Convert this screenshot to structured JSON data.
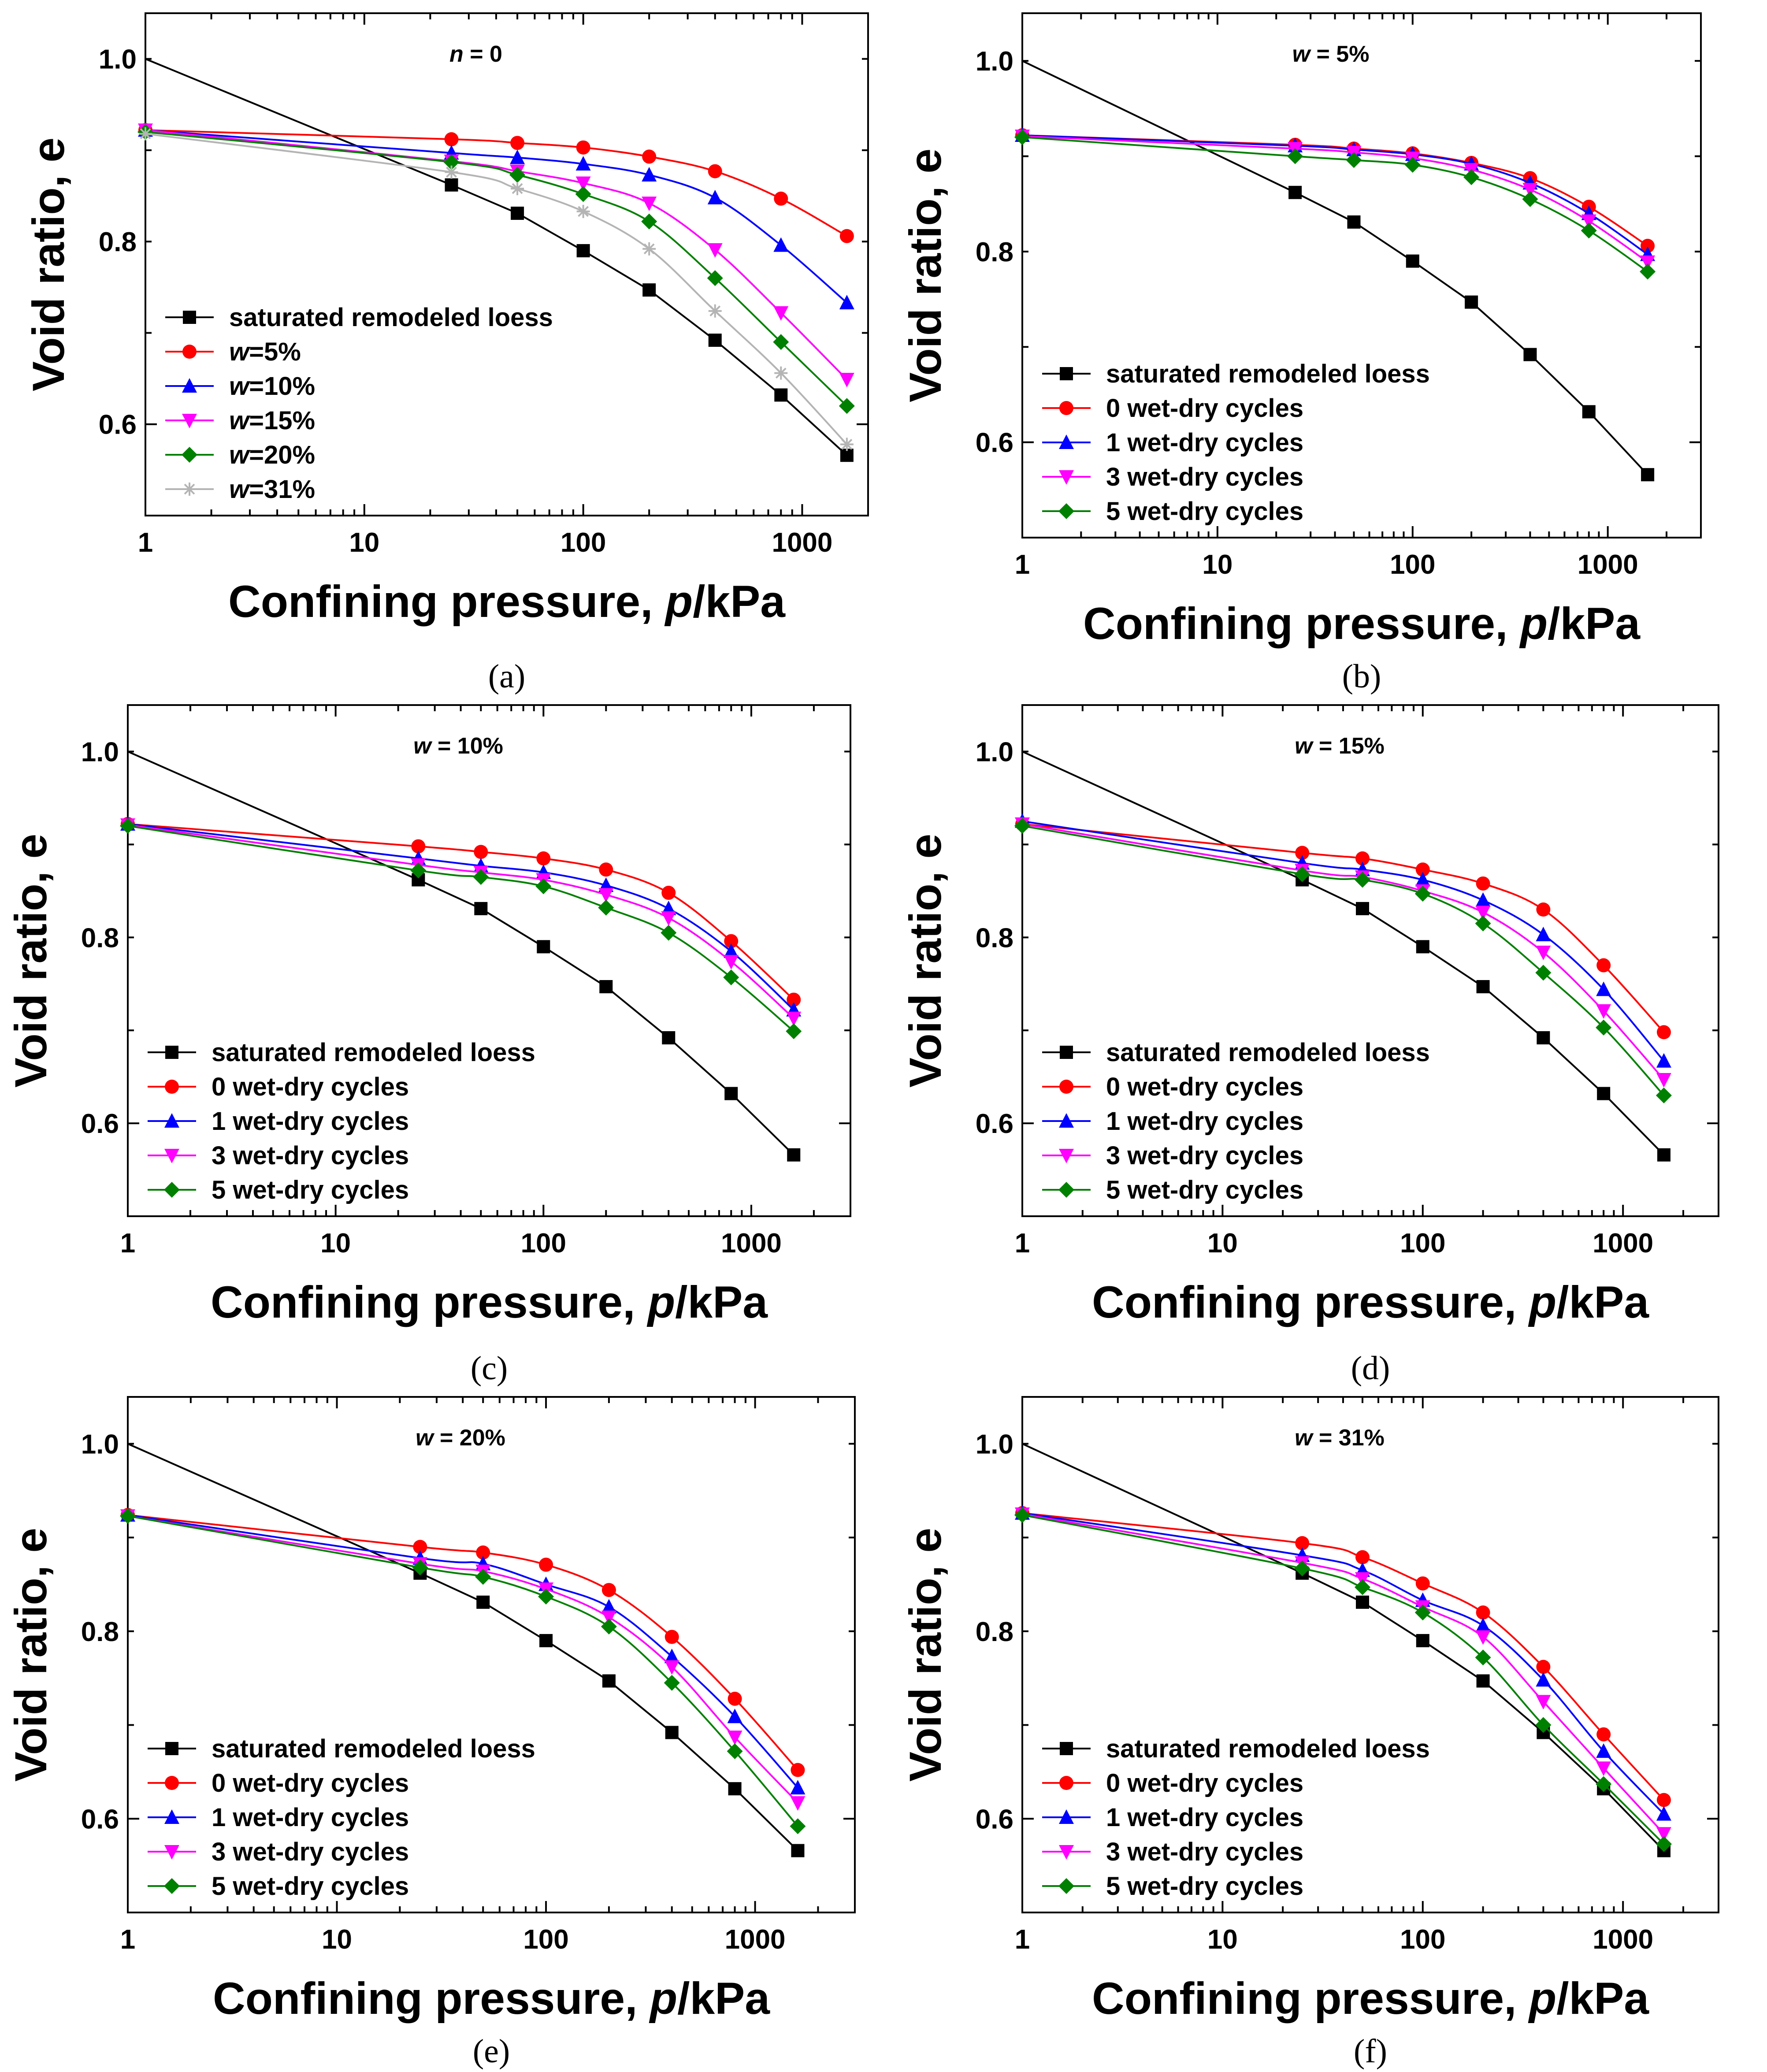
{
  "figure": {
    "x_axis_title": "Confining pressure,",
    "x_axis_title_var": "p",
    "x_axis_title_unit": "/kPa",
    "y_axis_title": "Void ratio, e",
    "x_ticks": [
      1,
      10,
      100,
      1000
    ],
    "y_ticks": [
      0.6,
      0.8,
      1.0
    ],
    "y_tick_labels": [
      "0.6",
      "0.8",
      "1.0"
    ]
  },
  "colors": {
    "saturated": "#000000",
    "red": "#ff0000",
    "blue": "#0000ff",
    "magenta": "#ff00ff",
    "green": "#008000",
    "gray": "#b4b4b4"
  },
  "chart_data": [
    {
      "type": "line",
      "caption": "(a)",
      "title_var": "n",
      "title_rest": " = 0",
      "x_scale": "log",
      "xlim": [
        1,
        2000
      ],
      "ylim": [
        0.5,
        1.05
      ],
      "legend_position": "lower-left",
      "x": [
        1,
        25,
        50,
        100,
        200,
        400,
        800,
        1600
      ],
      "series": [
        {
          "name": "saturated remodeled loess",
          "name_var": "",
          "name_rest": "saturated remodeled loess",
          "marker": "square",
          "color": "#000000",
          "line_only_first": true,
          "values": [
            1.0,
            0.862,
            0.831,
            0.79,
            0.747,
            0.692,
            0.632,
            0.566
          ]
        },
        {
          "name": "w=5%",
          "name_var": "w",
          "name_rest": "=5%",
          "marker": "circle",
          "color": "#ff0000",
          "values": [
            0.922,
            0.912,
            0.908,
            0.903,
            0.893,
            0.877,
            0.847,
            0.806
          ]
        },
        {
          "name": "w=10%",
          "name_var": "w",
          "name_rest": "=10%",
          "marker": "triangle-up",
          "color": "#0000ff",
          "values": [
            0.922,
            0.897,
            0.892,
            0.885,
            0.873,
            0.848,
            0.796,
            0.733
          ]
        },
        {
          "name": "w=15%",
          "name_var": "w",
          "name_rest": "=15%",
          "marker": "triangle-down",
          "color": "#ff00ff",
          "values": [
            0.922,
            0.888,
            0.877,
            0.864,
            0.842,
            0.791,
            0.722,
            0.649
          ]
        },
        {
          "name": "w=20%",
          "name_var": "w",
          "name_rest": "=20%",
          "marker": "diamond",
          "color": "#008000",
          "values": [
            0.92,
            0.887,
            0.873,
            0.852,
            0.822,
            0.76,
            0.69,
            0.62
          ]
        },
        {
          "name": "w=31%",
          "name_var": "w",
          "name_rest": "=31%",
          "marker": "star",
          "color": "#b4b4b4",
          "values": [
            0.918,
            0.876,
            0.858,
            0.833,
            0.792,
            0.724,
            0.656,
            0.578
          ]
        }
      ]
    },
    {
      "type": "line",
      "caption": "(b)",
      "title_var": "w",
      "title_rest": " = 5%",
      "x_scale": "log",
      "xlim": [
        1,
        3000
      ],
      "ylim": [
        0.5,
        1.05
      ],
      "legend_position": "lower-left",
      "x": [
        1,
        25,
        50,
        100,
        200,
        400,
        800,
        1600
      ],
      "series": [
        {
          "name": "saturated remodeled loess",
          "name_var": "",
          "name_rest": "saturated remodeled loess",
          "marker": "square",
          "color": "#000000",
          "line_only_first": true,
          "values": [
            1.0,
            0.862,
            0.831,
            0.79,
            0.747,
            0.692,
            0.632,
            0.566
          ]
        },
        {
          "name": "0 wet-dry cycles",
          "name_var": "",
          "name_rest": "0 wet-dry cycles",
          "marker": "circle",
          "color": "#ff0000",
          "values": [
            0.922,
            0.912,
            0.908,
            0.903,
            0.893,
            0.877,
            0.847,
            0.806
          ]
        },
        {
          "name": "1 wet-dry cycles",
          "name_var": "",
          "name_rest": "1 wet-dry cycles",
          "marker": "triangle-up",
          "color": "#0000ff",
          "values": [
            0.922,
            0.911,
            0.907,
            0.902,
            0.892,
            0.872,
            0.84,
            0.797
          ]
        },
        {
          "name": "3 wet-dry cycles",
          "name_var": "",
          "name_rest": "3 wet-dry cycles",
          "marker": "triangle-down",
          "color": "#ff00ff",
          "values": [
            0.921,
            0.908,
            0.904,
            0.898,
            0.886,
            0.865,
            0.832,
            0.789
          ]
        },
        {
          "name": "5 wet-dry cycles",
          "name_var": "",
          "name_rest": "5 wet-dry cycles",
          "marker": "diamond",
          "color": "#008000",
          "values": [
            0.92,
            0.9,
            0.896,
            0.891,
            0.878,
            0.855,
            0.822,
            0.779
          ]
        }
      ]
    },
    {
      "type": "line",
      "caption": "(c)",
      "title_var": "w",
      "title_rest": " = 10%",
      "x_scale": "log",
      "xlim": [
        1,
        3000
      ],
      "ylim": [
        0.5,
        1.05
      ],
      "legend_position": "lower-left",
      "x": [
        1,
        25,
        50,
        100,
        200,
        400,
        800,
        1600
      ],
      "series": [
        {
          "name": "saturated remodeled loess",
          "name_var": "",
          "name_rest": "saturated remodeled loess",
          "marker": "square",
          "color": "#000000",
          "line_only_first": true,
          "values": [
            1.0,
            0.862,
            0.831,
            0.79,
            0.747,
            0.692,
            0.632,
            0.566
          ]
        },
        {
          "name": "0 wet-dry cycles",
          "name_var": "",
          "name_rest": "0 wet-dry cycles",
          "marker": "circle",
          "color": "#ff0000",
          "values": [
            0.922,
            0.898,
            0.892,
            0.885,
            0.873,
            0.848,
            0.796,
            0.733
          ]
        },
        {
          "name": "1 wet-dry cycles",
          "name_var": "",
          "name_rest": "1 wet-dry cycles",
          "marker": "triangle-up",
          "color": "#0000ff",
          "values": [
            0.922,
            0.885,
            0.877,
            0.87,
            0.856,
            0.831,
            0.785,
            0.722
          ]
        },
        {
          "name": "3 wet-dry cycles",
          "name_var": "",
          "name_rest": "3 wet-dry cycles",
          "marker": "triangle-down",
          "color": "#ff00ff",
          "values": [
            0.921,
            0.878,
            0.87,
            0.862,
            0.846,
            0.821,
            0.774,
            0.713
          ]
        },
        {
          "name": "5 wet-dry cycles",
          "name_var": "",
          "name_rest": "5 wet-dry cycles",
          "marker": "diamond",
          "color": "#008000",
          "values": [
            0.92,
            0.872,
            0.865,
            0.855,
            0.832,
            0.805,
            0.757,
            0.699
          ]
        }
      ]
    },
    {
      "type": "line",
      "caption": "(d)",
      "title_var": "w",
      "title_rest": " = 15%",
      "x_scale": "log",
      "xlim": [
        1,
        3000
      ],
      "ylim": [
        0.5,
        1.05
      ],
      "legend_position": "lower-left",
      "x": [
        1,
        25,
        50,
        100,
        200,
        400,
        800,
        1600
      ],
      "series": [
        {
          "name": "saturated remodeled loess",
          "name_var": "",
          "name_rest": "saturated remodeled loess",
          "marker": "square",
          "color": "#000000",
          "line_only_first": true,
          "values": [
            1.0,
            0.862,
            0.831,
            0.79,
            0.747,
            0.692,
            0.632,
            0.566
          ]
        },
        {
          "name": "0 wet-dry cycles",
          "name_var": "",
          "name_rest": "0 wet-dry cycles",
          "marker": "circle",
          "color": "#ff0000",
          "values": [
            0.922,
            0.891,
            0.885,
            0.873,
            0.858,
            0.83,
            0.77,
            0.698
          ]
        },
        {
          "name": "1 wet-dry cycles",
          "name_var": "",
          "name_rest": "1 wet-dry cycles",
          "marker": "triangle-up",
          "color": "#0000ff",
          "values": [
            0.925,
            0.88,
            0.873,
            0.862,
            0.84,
            0.803,
            0.744,
            0.667
          ]
        },
        {
          "name": "3 wet-dry cycles",
          "name_var": "",
          "name_rest": "3 wet-dry cycles",
          "marker": "triangle-down",
          "color": "#ff00ff",
          "values": [
            0.922,
            0.872,
            0.865,
            0.85,
            0.827,
            0.784,
            0.721,
            0.647
          ]
        },
        {
          "name": "5 wet-dry cycles",
          "name_var": "",
          "name_rest": "5 wet-dry cycles",
          "marker": "diamond",
          "color": "#008000",
          "values": [
            0.92,
            0.868,
            0.862,
            0.847,
            0.815,
            0.762,
            0.703,
            0.63
          ]
        }
      ]
    },
    {
      "type": "line",
      "caption": "(e)",
      "title_var": "w",
      "title_rest": " = 20%",
      "x_scale": "log",
      "xlim": [
        1,
        3000
      ],
      "ylim": [
        0.5,
        1.05
      ],
      "legend_position": "lower-left",
      "x": [
        1,
        25,
        50,
        100,
        200,
        400,
        800,
        1600
      ],
      "series": [
        {
          "name": "saturated remodeled loess",
          "name_var": "",
          "name_rest": "saturated remodeled loess",
          "marker": "square",
          "color": "#000000",
          "line_only_first": true,
          "values": [
            1.0,
            0.862,
            0.831,
            0.79,
            0.747,
            0.692,
            0.632,
            0.566
          ]
        },
        {
          "name": "0 wet-dry cycles",
          "name_var": "",
          "name_rest": "0 wet-dry cycles",
          "marker": "circle",
          "color": "#ff0000",
          "values": [
            0.924,
            0.89,
            0.884,
            0.871,
            0.844,
            0.794,
            0.728,
            0.652
          ]
        },
        {
          "name": "1 wet-dry cycles",
          "name_var": "",
          "name_rest": "1 wet-dry cycles",
          "marker": "triangle-up",
          "color": "#0000ff",
          "values": [
            0.924,
            0.878,
            0.872,
            0.85,
            0.826,
            0.773,
            0.709,
            0.633
          ]
        },
        {
          "name": "3 wet-dry cycles",
          "name_var": "",
          "name_rest": "3 wet-dry cycles",
          "marker": "triangle-down",
          "color": "#ff00ff",
          "values": [
            0.923,
            0.872,
            0.864,
            0.845,
            0.815,
            0.762,
            0.687,
            0.617
          ]
        },
        {
          "name": "5 wet-dry cycles",
          "name_var": "",
          "name_rest": "5 wet-dry cycles",
          "marker": "diamond",
          "color": "#008000",
          "values": [
            0.923,
            0.868,
            0.858,
            0.837,
            0.805,
            0.745,
            0.672,
            0.592
          ]
        }
      ]
    },
    {
      "type": "line",
      "caption": "(f)",
      "title_var": "w",
      "title_rest": " = 31%",
      "x_scale": "log",
      "xlim": [
        1,
        3000
      ],
      "ylim": [
        0.5,
        1.05
      ],
      "legend_position": "lower-left",
      "x": [
        1,
        25,
        50,
        100,
        200,
        400,
        800,
        1600
      ],
      "series": [
        {
          "name": "saturated remodeled loess",
          "name_var": "",
          "name_rest": "saturated remodeled loess",
          "marker": "square",
          "color": "#000000",
          "line_only_first": true,
          "values": [
            1.0,
            0.862,
            0.831,
            0.79,
            0.747,
            0.692,
            0.632,
            0.566
          ]
        },
        {
          "name": "0 wet-dry cycles",
          "name_var": "",
          "name_rest": "0 wet-dry cycles",
          "marker": "circle",
          "color": "#ff0000",
          "values": [
            0.926,
            0.894,
            0.879,
            0.851,
            0.82,
            0.762,
            0.69,
            0.62
          ]
        },
        {
          "name": "1 wet-dry cycles",
          "name_var": "",
          "name_rest": "1 wet-dry cycles",
          "marker": "triangle-up",
          "color": "#0000ff",
          "values": [
            0.926,
            0.881,
            0.865,
            0.833,
            0.806,
            0.748,
            0.672,
            0.605
          ]
        },
        {
          "name": "3 wet-dry cycles",
          "name_var": "",
          "name_rest": "3 wet-dry cycles",
          "marker": "triangle-down",
          "color": "#ff00ff",
          "values": [
            0.925,
            0.873,
            0.856,
            0.826,
            0.794,
            0.725,
            0.654,
            0.584
          ]
        },
        {
          "name": "5 wet-dry cycles",
          "name_var": "",
          "name_rest": "5 wet-dry cycles",
          "marker": "diamond",
          "color": "#008000",
          "values": [
            0.924,
            0.867,
            0.847,
            0.82,
            0.772,
            0.7,
            0.637,
            0.573
          ]
        }
      ]
    }
  ]
}
